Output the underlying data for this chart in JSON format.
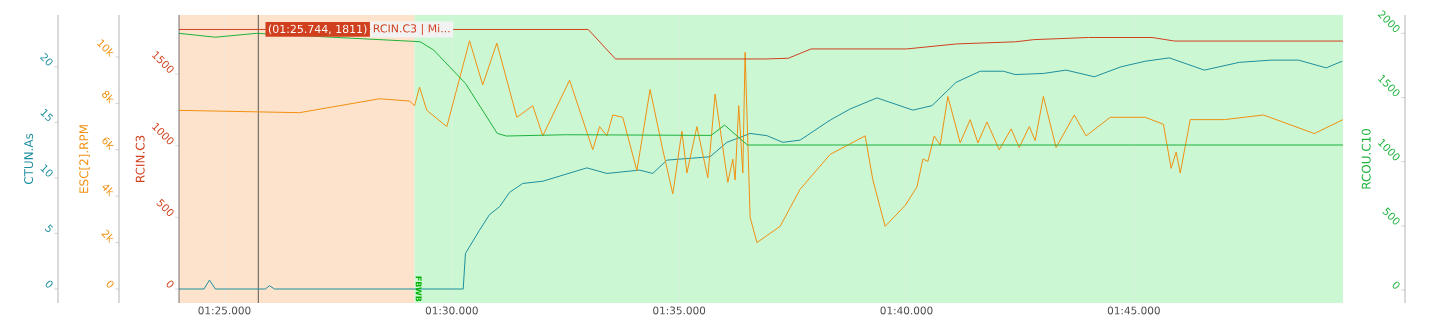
{
  "chart_data": [
    {
      "type": "line",
      "ylabel": "CTUN.As",
      "xlim": [
        "2000-01-01T00:01:24",
        "2000-01-01T00:01:49.6"
      ],
      "ylim": [
        -1.26,
        24.66
      ],
      "yticks": [
        0,
        5,
        10,
        15,
        20
      ],
      "tick_labels": "y",
      "series": [
        {
          "color": "#1d8f9e",
          "x": [
            "2000-01-01T00:01:24",
            "2000-01-01T00:01:24.55",
            "2000-01-01T00:01:24.67",
            "2000-01-01T00:01:24.8",
            "2000-01-01T00:01:25.9",
            "2000-01-01T00:01:25.99",
            "2000-01-01T00:01:26.1",
            "2000-01-01T00:01:30.25",
            "2000-01-01T00:01:30.3",
            "2000-01-01T00:01:30.61",
            "2000-01-01T00:01:30.83",
            "2000-01-01T00:01:31.05",
            "2000-01-01T00:01:31.27",
            "2000-01-01T00:01:31.56",
            "2000-01-01T00:01:32",
            "2000-01-01T00:01:32.97",
            "2000-01-01T00:01:33.41",
            "2000-01-01T00:01:34.13",
            "2000-01-01T00:01:34.42",
            "2000-01-01T00:01:34.73",
            "2000-01-01T00:01:35.68",
            "2000-01-01T00:01:36.05",
            "2000-01-01T00:01:36.56",
            "2000-01-01T00:01:36.93",
            "2000-01-01T00:01:37.28",
            "2000-01-01T00:01:37.66",
            "2000-01-01T00:01:38.32",
            "2000-01-01T00:01:38.76",
            "2000-01-01T00:01:39.35",
            "2000-01-01T00:01:40.14",
            "2000-01-01T00:01:40.56",
            "2000-01-01T00:01:41.09",
            "2000-01-01T00:01:41.62",
            "2000-01-01T00:01:42.13",
            "2000-01-01T00:01:42.39",
            "2000-01-01T00:01:43.01",
            "2000-01-01T00:01:43.51",
            "2000-01-01T00:01:44.13",
            "2000-01-01T00:01:44.72",
            "2000-01-01T00:01:45.25",
            "2000-01-01T00:01:45.78",
            "2000-01-01T00:01:46.55",
            "2000-01-01T00:01:47.32",
            "2000-01-01T00:01:48.02",
            "2000-01-01T00:01:48.62",
            "2000-01-01T00:01:49.23",
            "2000-01-01T00:01:49.58"
          ],
          "values": [
            0,
            0,
            0.8,
            0,
            0,
            0.3,
            0,
            0,
            3.2,
            5.3,
            6.7,
            7.4,
            8.7,
            9.5,
            9.7,
            10.9,
            10.4,
            10.7,
            10.4,
            11.6,
            11.9,
            13.2,
            14.0,
            13.8,
            13.2,
            13.4,
            15.2,
            16.2,
            17.2,
            16.1,
            16.5,
            18.6,
            19.6,
            19.6,
            19.3,
            19.4,
            19.7,
            19.1,
            20.0,
            20.5,
            20.8,
            19.7,
            20.4,
            20.6,
            20.6,
            19.9,
            20.5
          ]
        }
      ]
    },
    {
      "type": "line",
      "ylabel": "RCIN.C3",
      "y2label": "RCOU.C10",
      "y3label": "ESC[2].RPM",
      "xlim": [
        "2000-01-01T00:01:24",
        "2000-01-01T00:01:49.6"
      ],
      "xticks": [
        {
          "value": "2000-01-01T00:01:25",
          "label": "01:25.000"
        },
        {
          "value": "2000-01-01T00:01:30",
          "label": "01:30.000"
        },
        {
          "value": "2000-01-01T00:01:35",
          "label": "01:35.000"
        },
        {
          "value": "2000-01-01T00:01:40",
          "label": "01:40.000"
        },
        {
          "value": "2000-01-01T00:01:45",
          "label": "01:45.000"
        }
      ],
      "ylim": [
        -98,
        1912
      ],
      "yticks": [
        0,
        500,
        1000,
        1500
      ],
      "y2lim": [
        -101,
        2143
      ],
      "y2ticks": [
        0,
        500,
        1000,
        1500,
        2000
      ],
      "y3lim": [
        -603,
        11810
      ],
      "y3ticks": [
        0,
        {
          "value": 2000,
          "label": "2k"
        },
        {
          "value": 4000,
          "label": "4k"
        },
        {
          "value": 6000,
          "label": "6k"
        },
        {
          "value": 8000,
          "label": "8k"
        },
        {
          "value": 10000,
          "label": "10k"
        }
      ],
      "grid": true,
      "bands": [
        {
          "axis": "x",
          "from": "2000-01-01T00:01:24",
          "to": "2000-01-01T00:01:29.18",
          "color": "#fde3cc"
        },
        {
          "axis": "x",
          "from": "2000-01-01T00:01:29.18",
          "to": "2000-01-01T00:01:49.6",
          "label": "FBWB",
          "color": "#ccf7d3"
        }
      ],
      "ref_lines": [
        {
          "axis": "x",
          "value": "2000-01-01T00:01:25.744",
          "color": "#333333"
        }
      ],
      "annotations": [
        {
          "text": "(01:25.744, 1811)",
          "x": "2000-01-01T00:01:25.744",
          "y": 1811
        },
        "RCIN.C3 | Mi..."
      ],
      "series": [
        {
          "axis": "y3",
          "color": "#f0900f",
          "x": [
            "2000-01-01T00:01:24",
            "2000-01-01T00:01:26.65",
            "2000-01-01T00:01:28.41",
            "2000-01-01T00:01:29.07",
            "2000-01-01T00:01:29.18",
            "2000-01-01T00:01:29.29",
            "2000-01-01T00:01:29.45",
            "2000-01-01T00:01:29.89",
            "2000-01-01T00:01:30.39",
            "2000-01-01T00:01:30.68",
            "2000-01-01T00:01:30.99",
            "2000-01-01T00:01:31.43",
            "2000-01-01T00:01:31.78",
            "2000-01-01T00:01:32",
            "2000-01-01T00:01:32.59",
            "2000-01-01T00:01:33.1",
            "2000-01-01T00:01:33.25",
            "2000-01-01T00:01:33.41",
            "2000-01-01T00:01:33.54",
            "2000-01-01T00:01:33.76",
            "2000-01-01T00:01:34.07",
            "2000-01-01T00:01:34.36",
            "2000-01-01T00:01:34.64",
            "2000-01-01T00:01:34.86",
            "2000-01-01T00:01:35.06",
            "2000-01-01T00:01:35.17",
            "2000-01-01T00:01:35.39",
            "2000-01-01T00:01:35.63",
            "2000-01-01T00:01:35.79",
            "2000-01-01T00:01:36.07",
            "2000-01-01T00:01:36.18",
            "2000-01-01T00:01:36.23",
            "2000-01-01T00:01:36.31",
            "2000-01-01T00:01:36.4",
            "2000-01-01T00:01:36.45",
            "2000-01-01T00:01:36.56",
            "2000-01-01T00:01:36.71",
            "2000-01-01T00:01:37.22",
            "2000-01-01T00:01:37.66",
            "2000-01-01T00:01:38.32",
            "2000-01-01T00:01:39.09",
            "2000-01-01T00:01:39.26",
            "2000-01-01T00:01:39.53",
            "2000-01-01T00:01:39.97",
            "2000-01-01T00:01:40.23",
            "2000-01-01T00:01:40.36",
            "2000-01-01T00:01:40.47",
            "2000-01-01T00:01:40.61",
            "2000-01-01T00:01:40.74",
            "2000-01-01T00:01:40.91",
            "2000-01-01T00:01:41.18",
            "2000-01-01T00:01:41.4",
            "2000-01-01T00:01:41.57",
            "2000-01-01T00:01:41.77",
            "2000-01-01T00:01:42.04",
            "2000-01-01T00:01:42.3",
            "2000-01-01T00:01:42.48",
            "2000-01-01T00:01:42.7",
            "2000-01-01T00:01:42.83",
            "2000-01-01T00:01:43.01",
            "2000-01-01T00:01:43.29",
            "2000-01-01T00:01:43.69",
            "2000-01-01T00:01:43.95",
            "2000-01-01T00:01:44.48",
            "2000-01-01T00:01:45.25",
            "2000-01-01T00:01:45.65",
            "2000-01-01T00:01:45.82",
            "2000-01-01T00:01:45.93",
            "2000-01-01T00:01:46.02",
            "2000-01-01T00:01:46.24",
            "2000-01-01T00:01:46.99",
            "2000-01-01T00:01:47.85",
            "2000-01-01T00:01:48.97",
            "2000-01-01T00:01:49.6"
          ],
          "values": [
            7700,
            7600,
            8200,
            8100,
            7900,
            8700,
            7700,
            7000,
            10700,
            8800,
            10600,
            7400,
            7900,
            6600,
            9000,
            6000,
            7000,
            6600,
            7500,
            7400,
            5100,
            8600,
            6000,
            4100,
            6800,
            5000,
            7000,
            4800,
            8400,
            4600,
            5600,
            4700,
            7900,
            5000,
            10200,
            3100,
            2000,
            2700,
            4300,
            5800,
            6600,
            4700,
            2700,
            3600,
            4400,
            5600,
            5500,
            6600,
            6200,
            8300,
            6300,
            7300,
            6300,
            7200,
            6000,
            6900,
            6100,
            7000,
            6400,
            8300,
            6100,
            7500,
            6600,
            7400,
            7400,
            7100,
            5200,
            5900,
            5000,
            7300,
            7300,
            7500,
            6700,
            7300
          ]
        },
        {
          "axis": "y2",
          "color": "#1db33c",
          "x": [
            "2000-01-01T00:01:24",
            "2000-01-01T00:01:24.8",
            "2000-01-01T00:01:25.7",
            "2000-01-01T00:01:29.3",
            "2000-01-01T00:01:29.6",
            "2000-01-01T00:01:30.3",
            "2000-01-01T00:01:31",
            "2000-01-01T00:01:31.2",
            "2000-01-01T00:01:32.5",
            "2000-01-01T00:01:35.7",
            "2000-01-01T00:01:36",
            "2000-01-01T00:01:36.5",
            "2000-01-01T00:01:49.6"
          ],
          "values": [
            2000,
            1970,
            2000,
            1935,
            1870,
            1610,
            1220,
            1200,
            1210,
            1205,
            1285,
            1130,
            1130
          ]
        },
        {
          "color": "#d0401f",
          "x": [
            "2000-01-01T00:01:24",
            "2000-01-01T00:01:33",
            "2000-01-01T00:01:33.6",
            "2000-01-01T00:01:36.9",
            "2000-01-01T00:01:37.4",
            "2000-01-01T00:01:37.9",
            "2000-01-01T00:01:40",
            "2000-01-01T00:01:41.1",
            "2000-01-01T00:01:42.4",
            "2000-01-01T00:01:42.8",
            "2000-01-01T00:01:44",
            "2000-01-01T00:01:45.4",
            "2000-01-01T00:01:45.9",
            "2000-01-01T00:01:49.6"
          ],
          "values": [
            1811,
            1811,
            1605,
            1605,
            1610,
            1675,
            1675,
            1710,
            1725,
            1740,
            1755,
            1755,
            1730,
            1730
          ]
        }
      ]
    }
  ]
}
